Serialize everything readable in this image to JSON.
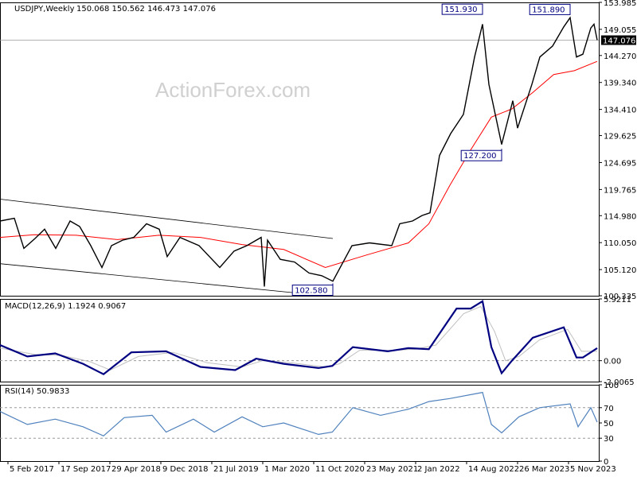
{
  "chart_data": [
    {
      "type": "line",
      "panel": "price",
      "title": "USDJPY,Weekly",
      "ohlc": {
        "open": "150.068",
        "high": "150.562",
        "low": "146.473",
        "close": "147.076"
      },
      "watermark": "ActionForex.com",
      "current_price_label": "147.076",
      "ylim": [
        100.335,
        153.985
      ],
      "y_ticks": [
        "153.985",
        "149.055",
        "144.270",
        "139.340",
        "134.410",
        "129.625",
        "124.695",
        "119.765",
        "114.980",
        "110.050",
        "105.120",
        "100.335"
      ],
      "x_tick_labels": [
        "5 Feb 2017",
        "17 Sep 2017",
        "29 Apr 2018",
        "9 Dec 2018",
        "21 Jul 2019",
        "1 Mar 2020",
        "11 Oct 2020",
        "23 May 2021",
        "2 Jan 2022",
        "14 Aug 2022",
        "26 Mar 2023",
        "5 Nov 2023"
      ],
      "annotations": [
        {
          "text": "151.930",
          "x": "2022-10-23",
          "y": 151.93
        },
        {
          "text": "127.200",
          "x": "2023-01-15",
          "y": 127.2
        },
        {
          "text": "151.890",
          "x": "2023-11-12",
          "y": 151.89
        },
        {
          "text": "102.580",
          "x": "2021-01-03",
          "y": 102.58
        }
      ],
      "series": [
        {
          "kind": "price-close",
          "color": "#000000",
          "points": [
            [
              "2017-01-01",
              114
            ],
            [
              "2017-03-05",
              114.5
            ],
            [
              "2017-04-16",
              109
            ],
            [
              "2017-06-04",
              110.8
            ],
            [
              "2017-07-16",
              112.5
            ],
            [
              "2017-09-03",
              109
            ],
            [
              "2017-11-05",
              114
            ],
            [
              "2017-12-17",
              113
            ],
            [
              "2018-02-04",
              109.5
            ],
            [
              "2018-03-25",
              105.5
            ],
            [
              "2018-05-06",
              109.5
            ],
            [
              "2018-06-24",
              110.5
            ],
            [
              "2018-08-12",
              111
            ],
            [
              "2018-10-07",
              113.5
            ],
            [
              "2018-12-02",
              112.5
            ],
            [
              "2019-01-06",
              107.5
            ],
            [
              "2019-03-03",
              111
            ],
            [
              "2019-05-26",
              109.5
            ],
            [
              "2019-08-25",
              105.5
            ],
            [
              "2019-10-27",
              108.5
            ],
            [
              "2019-12-22",
              109.5
            ],
            [
              "2020-02-23",
              111
            ],
            [
              "2020-03-08",
              102
            ],
            [
              "2020-03-22",
              110.5
            ],
            [
              "2020-05-17",
              107
            ],
            [
              "2020-07-19",
              106.5
            ],
            [
              "2020-09-20",
              104.5
            ],
            [
              "2020-11-15",
              104
            ],
            [
              "2021-01-03",
              103
            ],
            [
              "2021-03-28",
              109.5
            ],
            [
              "2021-06-13",
              110
            ],
            [
              "2021-09-19",
              109.5
            ],
            [
              "2021-10-24",
              113.5
            ],
            [
              "2021-12-19",
              114
            ],
            [
              "2022-01-30",
              115
            ],
            [
              "2022-03-06",
              115.5
            ],
            [
              "2022-04-17",
              126
            ],
            [
              "2022-06-05",
              130
            ],
            [
              "2022-07-31",
              133.5
            ],
            [
              "2022-09-18",
              144
            ],
            [
              "2022-10-23",
              150
            ],
            [
              "2022-11-20",
              139
            ],
            [
              "2023-01-15",
              128
            ],
            [
              "2023-03-05",
              136
            ],
            [
              "2023-03-26",
              131
            ],
            [
              "2023-05-28",
              139
            ],
            [
              "2023-07-02",
              144
            ],
            [
              "2023-08-27",
              146
            ],
            [
              "2023-10-15",
              149.5
            ],
            [
              "2023-11-12",
              151.2
            ],
            [
              "2023-12-10",
              144
            ],
            [
              "2024-01-07",
              144.5
            ],
            [
              "2024-02-11",
              149.3
            ],
            [
              "2024-02-25",
              150
            ],
            [
              "2024-03-10",
              147.1
            ]
          ]
        },
        {
          "kind": "moving-average",
          "color": "#ff0000",
          "points": [
            [
              "2017-01-01",
              111
            ],
            [
              "2017-06-01",
              111.5
            ],
            [
              "2017-12-01",
              111.4
            ],
            [
              "2018-06-01",
              110.6
            ],
            [
              "2018-12-01",
              111.4
            ],
            [
              "2019-06-01",
              111
            ],
            [
              "2019-12-01",
              109.7
            ],
            [
              "2020-06-01",
              108.8
            ],
            [
              "2020-12-01",
              105.5
            ],
            [
              "2021-06-01",
              107.8
            ],
            [
              "2021-12-01",
              110
            ],
            [
              "2022-03-01",
              113.5
            ],
            [
              "2022-06-01",
              120.5
            ],
            [
              "2022-09-01",
              127
            ],
            [
              "2022-12-01",
              133
            ],
            [
              "2023-03-01",
              134.5
            ],
            [
              "2023-06-01",
              137.5
            ],
            [
              "2023-09-01",
              140.8
            ],
            [
              "2023-12-01",
              141.5
            ],
            [
              "2024-03-10",
              143.2
            ]
          ]
        }
      ],
      "channel_lines": [
        {
          "x1": "2017-01-01",
          "y1": 118,
          "x2": "2021-01-03",
          "y2": 110.8
        },
        {
          "x1": "2017-01-01",
          "y1": 106.2,
          "x2": "2020-12-06",
          "y2": 100.3
        }
      ],
      "grid": false
    },
    {
      "type": "line",
      "panel": "macd",
      "title": "MACD(12,26,9) 1.1924 0.9067",
      "ylim": [
        -2.0065,
        5.9211
      ],
      "y_ticks": [
        "5.9211",
        "0.00",
        "-2.0065"
      ],
      "series": [
        {
          "kind": "histogram",
          "color": "#000080",
          "points": [
            [
              "2017-01-01",
              1.5
            ],
            [
              "2017-05-01",
              0.4
            ],
            [
              "2017-09-01",
              0.7
            ],
            [
              "2018-01-01",
              -0.3
            ],
            [
              "2018-04-01",
              -1.3
            ],
            [
              "2018-08-01",
              0.8
            ],
            [
              "2019-01-01",
              0.9
            ],
            [
              "2019-06-01",
              -0.6
            ],
            [
              "2019-11-01",
              -0.9
            ],
            [
              "2020-02-01",
              0.2
            ],
            [
              "2020-06-01",
              -0.3
            ],
            [
              "2020-11-01",
              -0.7
            ],
            [
              "2021-01-01",
              -0.5
            ],
            [
              "2021-04-01",
              1.3
            ],
            [
              "2021-09-01",
              0.9
            ],
            [
              "2021-12-01",
              1.2
            ],
            [
              "2022-03-01",
              1.1
            ],
            [
              "2022-07-01",
              5.0
            ],
            [
              "2022-09-01",
              5.0
            ],
            [
              "2022-10-23",
              5.7
            ],
            [
              "2022-12-01",
              1.3
            ],
            [
              "2023-01-15",
              -1.2
            ],
            [
              "2023-03-01",
              0
            ],
            [
              "2023-06-01",
              2.2
            ],
            [
              "2023-10-15",
              3.2
            ],
            [
              "2023-12-10",
              0.3
            ],
            [
              "2024-01-07",
              0.3
            ],
            [
              "2024-03-10",
              1.2
            ]
          ]
        },
        {
          "kind": "signal",
          "color": "#c0c0c0",
          "points": [
            [
              "2017-01-01",
              1.2
            ],
            [
              "2017-06-01",
              0.6
            ],
            [
              "2017-10-01",
              0.5
            ],
            [
              "2018-02-01",
              -0.1
            ],
            [
              "2018-05-01",
              -0.9
            ],
            [
              "2018-09-01",
              0.4
            ],
            [
              "2019-02-01",
              0.8
            ],
            [
              "2019-07-01",
              -0.2
            ],
            [
              "2019-12-01",
              -0.6
            ],
            [
              "2020-03-01",
              0
            ],
            [
              "2020-07-01",
              -0.2
            ],
            [
              "2020-12-01",
              -0.6
            ],
            [
              "2021-02-01",
              -0.3
            ],
            [
              "2021-05-01",
              1.0
            ],
            [
              "2021-10-01",
              1.0
            ],
            [
              "2022-01-01",
              1.1
            ],
            [
              "2022-04-01",
              1.5
            ],
            [
              "2022-08-01",
              4.5
            ],
            [
              "2022-10-15",
              5.2
            ],
            [
              "2022-12-15",
              2.8
            ],
            [
              "2023-02-01",
              0
            ],
            [
              "2023-04-01",
              0.4
            ],
            [
              "2023-07-01",
              2.0
            ],
            [
              "2023-11-01",
              3.0
            ],
            [
              "2024-01-01",
              0.9
            ],
            [
              "2024-03-10",
              0.9
            ]
          ]
        }
      ]
    },
    {
      "type": "line",
      "panel": "rsi",
      "title": "RSI(14) 50.9833",
      "ylim": [
        0,
        100
      ],
      "y_ticks": [
        "100",
        "70",
        "50",
        "30",
        "0"
      ],
      "levels": [
        70,
        30
      ],
      "series": [
        {
          "kind": "rsi",
          "color": "#4f81bd",
          "points": [
            [
              "2017-01-01",
              65
            ],
            [
              "2017-05-01",
              48
            ],
            [
              "2017-09-01",
              55
            ],
            [
              "2018-01-01",
              45
            ],
            [
              "2018-04-01",
              33
            ],
            [
              "2018-07-01",
              57
            ],
            [
              "2018-11-01",
              60
            ],
            [
              "2019-01-01",
              38
            ],
            [
              "2019-05-01",
              55
            ],
            [
              "2019-08-01",
              38
            ],
            [
              "2019-12-01",
              58
            ],
            [
              "2020-03-01",
              45
            ],
            [
              "2020-06-01",
              50
            ],
            [
              "2020-11-01",
              35
            ],
            [
              "2021-01-01",
              38
            ],
            [
              "2021-04-01",
              70
            ],
            [
              "2021-08-01",
              60
            ],
            [
              "2021-12-01",
              68
            ],
            [
              "2022-03-01",
              78
            ],
            [
              "2022-06-01",
              82
            ],
            [
              "2022-10-23",
              90
            ],
            [
              "2022-12-01",
              48
            ],
            [
              "2023-01-15",
              37
            ],
            [
              "2023-04-01",
              58
            ],
            [
              "2023-07-01",
              70
            ],
            [
              "2023-11-12",
              75
            ],
            [
              "2023-12-17",
              45
            ],
            [
              "2024-02-11",
              70
            ],
            [
              "2024-03-10",
              51
            ]
          ]
        }
      ]
    }
  ]
}
